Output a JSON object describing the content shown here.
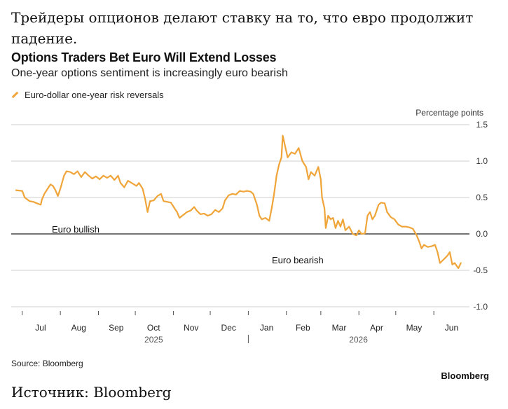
{
  "header": {
    "ru_title": "Трейдеры опционов делают ставку на то, что евро продолжит падение."
  },
  "footer": {
    "ru_source": "Источник: Bloomberg"
  },
  "chart_data": {
    "type": "line",
    "title": "Options Traders Bet Euro Will Extend Losses",
    "subtitle": "One-year options sentiment is increasingly euro bearish",
    "ylabel": "Percentage points",
    "xlabel": "",
    "ylim": [
      -1.0,
      1.5
    ],
    "yticks": [
      1.5,
      1.0,
      0.5,
      0.0,
      -0.5,
      -1.0
    ],
    "ytick_labels": [
      "1.5",
      "1.0",
      "0.5",
      "0.0",
      "-0.5",
      "-1.0"
    ],
    "x_months": [
      "Jul",
      "Aug",
      "Sep",
      "Oct",
      "Nov",
      "Dec",
      "Jan",
      "Feb",
      "Mar",
      "Apr",
      "May",
      "Jun"
    ],
    "x_years": [
      "2025",
      "2026"
    ],
    "grid": true,
    "legend_position": "top-left",
    "annotations": [
      "Euro bullish",
      "Euro bearish"
    ],
    "source": "Source: Bloomberg",
    "brand": "Bloomberg",
    "line_color": "#f0a53a",
    "series": [
      {
        "name": "Euro-dollar one-year risk reversals",
        "points": [
          [
            "2025-06-26",
            0.6
          ],
          [
            "2025-07-01",
            0.59
          ],
          [
            "2025-07-03",
            0.5
          ],
          [
            "2025-07-07",
            0.45
          ],
          [
            "2025-07-10",
            0.44
          ],
          [
            "2025-07-13",
            0.42
          ],
          [
            "2025-07-16",
            0.4
          ],
          [
            "2025-07-17",
            0.47
          ],
          [
            "2025-07-19",
            0.55
          ],
          [
            "2025-07-22",
            0.63
          ],
          [
            "2025-07-24",
            0.68
          ],
          [
            "2025-07-26",
            0.66
          ],
          [
            "2025-07-28",
            0.6
          ],
          [
            "2025-07-30",
            0.52
          ],
          [
            "2025-08-01",
            0.62
          ],
          [
            "2025-08-04",
            0.8
          ],
          [
            "2025-08-06",
            0.86
          ],
          [
            "2025-08-09",
            0.85
          ],
          [
            "2025-08-12",
            0.82
          ],
          [
            "2025-08-15",
            0.86
          ],
          [
            "2025-08-18",
            0.78
          ],
          [
            "2025-08-21",
            0.85
          ],
          [
            "2025-08-24",
            0.8
          ],
          [
            "2025-08-27",
            0.76
          ],
          [
            "2025-08-30",
            0.79
          ],
          [
            "2025-09-02",
            0.75
          ],
          [
            "2025-09-05",
            0.8
          ],
          [
            "2025-09-08",
            0.77
          ],
          [
            "2025-09-11",
            0.8
          ],
          [
            "2025-09-14",
            0.74
          ],
          [
            "2025-09-17",
            0.8
          ],
          [
            "2025-09-19",
            0.7
          ],
          [
            "2025-09-22",
            0.64
          ],
          [
            "2025-09-25",
            0.73
          ],
          [
            "2025-09-28",
            0.7
          ],
          [
            "2025-10-02",
            0.66
          ],
          [
            "2025-10-04",
            0.7
          ],
          [
            "2025-10-07",
            0.62
          ],
          [
            "2025-10-09",
            0.48
          ],
          [
            "2025-10-11",
            0.3
          ],
          [
            "2025-10-13",
            0.45
          ],
          [
            "2025-10-16",
            0.46
          ],
          [
            "2025-10-19",
            0.52
          ],
          [
            "2025-10-22",
            0.55
          ],
          [
            "2025-10-24",
            0.45
          ],
          [
            "2025-10-27",
            0.44
          ],
          [
            "2025-10-30",
            0.43
          ],
          [
            "2025-11-02",
            0.35
          ],
          [
            "2025-11-04",
            0.3
          ],
          [
            "2025-11-06",
            0.22
          ],
          [
            "2025-11-09",
            0.26
          ],
          [
            "2025-11-12",
            0.3
          ],
          [
            "2025-11-15",
            0.32
          ],
          [
            "2025-11-18",
            0.37
          ],
          [
            "2025-11-20",
            0.32
          ],
          [
            "2025-11-23",
            0.27
          ],
          [
            "2025-11-26",
            0.28
          ],
          [
            "2025-11-29",
            0.25
          ],
          [
            "2025-12-02",
            0.27
          ],
          [
            "2025-12-05",
            0.33
          ],
          [
            "2025-12-08",
            0.3
          ],
          [
            "2025-12-11",
            0.35
          ],
          [
            "2025-12-13",
            0.46
          ],
          [
            "2025-12-16",
            0.53
          ],
          [
            "2025-12-19",
            0.55
          ],
          [
            "2025-12-22",
            0.54
          ],
          [
            "2025-12-25",
            0.59
          ],
          [
            "2025-12-28",
            0.58
          ],
          [
            "2025-12-31",
            0.59
          ],
          [
            "2026-01-03",
            0.58
          ],
          [
            "2026-01-05",
            0.55
          ],
          [
            "2026-01-08",
            0.4
          ],
          [
            "2026-01-10",
            0.25
          ],
          [
            "2026-01-12",
            0.2
          ],
          [
            "2026-01-15",
            0.22
          ],
          [
            "2026-01-18",
            0.18
          ],
          [
            "2026-01-20",
            0.35
          ],
          [
            "2026-01-22",
            0.55
          ],
          [
            "2026-01-24",
            0.8
          ],
          [
            "2026-01-26",
            0.95
          ],
          [
            "2026-01-28",
            1.05
          ],
          [
            "2026-01-29",
            1.35
          ],
          [
            "2026-01-31",
            1.2
          ],
          [
            "2026-02-02",
            1.05
          ],
          [
            "2026-02-05",
            1.12
          ],
          [
            "2026-02-08",
            1.1
          ],
          [
            "2026-02-11",
            1.18
          ],
          [
            "2026-02-14",
            1.0
          ],
          [
            "2026-02-17",
            0.92
          ],
          [
            "2026-02-19",
            0.75
          ],
          [
            "2026-02-21",
            0.85
          ],
          [
            "2026-02-24",
            0.8
          ],
          [
            "2026-02-27",
            0.92
          ],
          [
            "2026-03-01",
            0.75
          ],
          [
            "2026-03-02",
            0.5
          ],
          [
            "2026-03-04",
            0.35
          ],
          [
            "2026-03-05",
            0.08
          ],
          [
            "2026-03-07",
            0.25
          ],
          [
            "2026-03-09",
            0.2
          ],
          [
            "2026-03-11",
            0.22
          ],
          [
            "2026-03-13",
            0.08
          ],
          [
            "2026-03-15",
            0.18
          ],
          [
            "2026-03-17",
            0.1
          ],
          [
            "2026-03-19",
            0.2
          ],
          [
            "2026-03-21",
            0.05
          ],
          [
            "2026-03-24",
            0.1
          ],
          [
            "2026-03-27",
            0.0
          ],
          [
            "2026-03-30",
            -0.02
          ],
          [
            "2026-04-01",
            0.05
          ],
          [
            "2026-04-03",
            0.0
          ],
          [
            "2026-04-06",
            0.01
          ],
          [
            "2026-04-08",
            0.25
          ],
          [
            "2026-04-10",
            0.3
          ],
          [
            "2026-04-12",
            0.2
          ],
          [
            "2026-04-14",
            0.25
          ],
          [
            "2026-04-17",
            0.4
          ],
          [
            "2026-04-19",
            0.43
          ],
          [
            "2026-04-22",
            0.42
          ],
          [
            "2026-04-24",
            0.3
          ],
          [
            "2026-04-27",
            0.23
          ],
          [
            "2026-04-30",
            0.2
          ],
          [
            "2026-05-03",
            0.13
          ],
          [
            "2026-05-06",
            0.1
          ],
          [
            "2026-05-09",
            0.1
          ],
          [
            "2026-05-12",
            0.09
          ],
          [
            "2026-05-15",
            0.07
          ],
          [
            "2026-05-18",
            -0.02
          ],
          [
            "2026-05-20",
            -0.1
          ],
          [
            "2026-05-22",
            -0.2
          ],
          [
            "2026-05-24",
            -0.15
          ],
          [
            "2026-05-27",
            -0.18
          ],
          [
            "2026-05-30",
            -0.17
          ],
          [
            "2026-06-02",
            -0.15
          ],
          [
            "2026-06-04",
            -0.25
          ],
          [
            "2026-06-06",
            -0.4
          ],
          [
            "2026-06-09",
            -0.35
          ],
          [
            "2026-06-12",
            -0.3
          ],
          [
            "2026-06-14",
            -0.25
          ],
          [
            "2026-06-16",
            -0.42
          ],
          [
            "2026-06-18",
            -0.4
          ],
          [
            "2026-06-20",
            -0.45
          ],
          [
            "2026-06-21",
            -0.47
          ],
          [
            "2026-06-23",
            -0.4
          ]
        ]
      }
    ]
  }
}
